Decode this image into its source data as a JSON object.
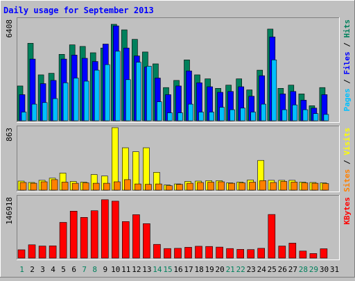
{
  "chart_data": [
    {
      "type": "bar",
      "title": "Daily usage for September 2013",
      "categories": [
        "1",
        "2",
        "3",
        "4",
        "5",
        "6",
        "7",
        "8",
        "9",
        "10",
        "11",
        "12",
        "13",
        "14",
        "15",
        "16",
        "17",
        "18",
        "19",
        "20",
        "21",
        "22",
        "23",
        "24",
        "25",
        "26",
        "27",
        "28",
        "29",
        "30",
        "31"
      ],
      "weekend_days": [
        "1",
        "7",
        "8",
        "14",
        "15",
        "21",
        "22",
        "28",
        "29"
      ],
      "ylim": [
        0,
        6408
      ],
      "y_max_label": "6408",
      "legend": [
        "Pages",
        "Files",
        "Hits"
      ],
      "legend_separator": " / ",
      "series": [
        {
          "name": "Hits",
          "color": "#00805C",
          "values": [
            2200,
            4900,
            2900,
            3000,
            4200,
            4800,
            4700,
            4300,
            4600,
            6100,
            5750,
            5150,
            4350,
            3600,
            2100,
            2550,
            3850,
            2900,
            2650,
            2050,
            2250,
            2650,
            1950,
            3200,
            5800,
            2050,
            2250,
            1700,
            950,
            2100,
            null
          ]
        },
        {
          "name": "Files",
          "color": "#0000FF",
          "values": [
            1650,
            3900,
            2350,
            2550,
            3900,
            4150,
            3950,
            3750,
            4850,
            6000,
            4600,
            4100,
            3400,
            2700,
            1650,
            2200,
            3150,
            2400,
            2150,
            1800,
            1850,
            2150,
            1550,
            2850,
            5300,
            1700,
            1850,
            1300,
            800,
            1650,
            null
          ]
        },
        {
          "name": "Pages",
          "color": "#00C0FF",
          "values": [
            550,
            1050,
            1150,
            1400,
            2400,
            2700,
            2500,
            3200,
            3550,
            4400,
            2600,
            3700,
            3450,
            1200,
            500,
            500,
            1050,
            550,
            550,
            850,
            700,
            800,
            550,
            1050,
            3850,
            700,
            1000,
            700,
            450,
            400,
            null
          ]
        }
      ]
    },
    {
      "type": "bar",
      "categories": [
        "1",
        "2",
        "3",
        "4",
        "5",
        "6",
        "7",
        "8",
        "9",
        "10",
        "11",
        "12",
        "13",
        "14",
        "15",
        "16",
        "17",
        "18",
        "19",
        "20",
        "21",
        "22",
        "23",
        "24",
        "25",
        "26",
        "27",
        "28",
        "29",
        "30",
        "31"
      ],
      "ylim": [
        0,
        863
      ],
      "y_max_label": "863",
      "legend": [
        "Sites",
        "Visits"
      ],
      "legend_separator": " / ",
      "series": [
        {
          "name": "Visits",
          "color": "#FFFF00",
          "values": [
            125,
            105,
            135,
            165,
            235,
            120,
            110,
            215,
            195,
            863,
            585,
            530,
            585,
            245,
            70,
            85,
            120,
            125,
            130,
            130,
            100,
            110,
            140,
            410,
            135,
            135,
            135,
            110,
            105,
            100,
            null
          ]
        },
        {
          "name": "Sites",
          "color": "#FF8000",
          "values": [
            105,
            95,
            115,
            145,
            110,
            95,
            100,
            95,
            95,
            115,
            145,
            85,
            80,
            85,
            60,
            80,
            95,
            105,
            110,
            115,
            95,
            100,
            110,
            130,
            105,
            120,
            110,
            100,
            95,
            90,
            null
          ]
        }
      ]
    },
    {
      "type": "bar",
      "categories": [
        "1",
        "2",
        "3",
        "4",
        "5",
        "6",
        "7",
        "8",
        "9",
        "10",
        "11",
        "12",
        "13",
        "14",
        "15",
        "16",
        "17",
        "18",
        "19",
        "20",
        "21",
        "22",
        "23",
        "24",
        "25",
        "26",
        "27",
        "28",
        "29",
        "30",
        "31"
      ],
      "ylim": [
        0,
        146918
      ],
      "y_max_label": "146918",
      "legend": [
        "KBytes"
      ],
      "legend_separator": "",
      "series": [
        {
          "name": "KBytes",
          "color": "#FF0000",
          "values": [
            20000,
            32000,
            29000,
            29500,
            86000,
            113000,
            98000,
            114000,
            140500,
            137000,
            88000,
            104500,
            83000,
            33000,
            23000,
            23500,
            26000,
            28500,
            28000,
            26500,
            23000,
            21000,
            20500,
            23500,
            105000,
            29000,
            36000,
            17000,
            11000,
            22500,
            null
          ]
        }
      ]
    }
  ]
}
